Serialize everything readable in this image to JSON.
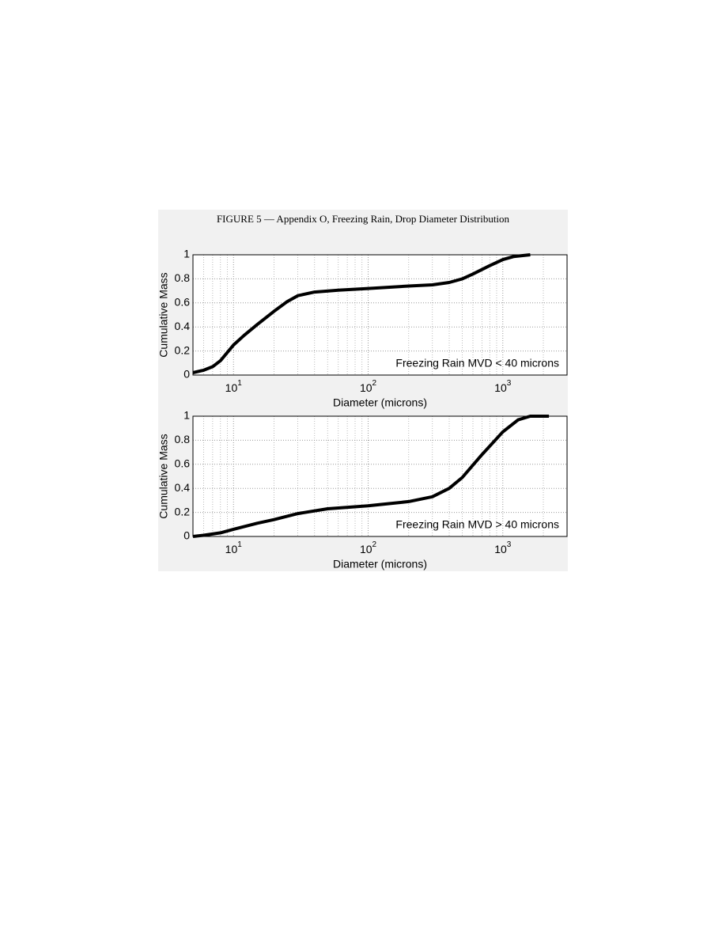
{
  "title": "FIGURE 5 — Appendix O, Freezing Rain, Drop Diameter Distribution",
  "chart_data": [
    {
      "type": "line",
      "xlabel": "Diameter (microns)",
      "ylabel": "Cumulative Mass",
      "annotation": "Freezing Rain MVD < 40 microns",
      "xlog": true,
      "grid": true,
      "minor_grid": true,
      "color": "#000000",
      "xlim": [
        5,
        3000
      ],
      "ylim": [
        0,
        1
      ],
      "xticks": [
        {
          "value": 10,
          "label": "10^1"
        },
        {
          "value": 100,
          "label": "10^2"
        },
        {
          "value": 1000,
          "label": "10^3"
        }
      ],
      "yticks": [
        0,
        0.2,
        0.4,
        0.6,
        0.8,
        1
      ],
      "x": [
        5,
        6,
        7,
        8,
        10,
        12,
        15,
        20,
        25,
        30,
        40,
        60,
        100,
        200,
        300,
        400,
        500,
        600,
        800,
        1000,
        1200,
        1600
      ],
      "values": [
        0.02,
        0.04,
        0.07,
        0.12,
        0.25,
        0.33,
        0.42,
        0.53,
        0.61,
        0.66,
        0.69,
        0.705,
        0.72,
        0.74,
        0.75,
        0.77,
        0.8,
        0.84,
        0.91,
        0.96,
        0.985,
        1
      ]
    },
    {
      "type": "line",
      "xlabel": "Diameter (microns)",
      "ylabel": "Cumulative Mass",
      "annotation": "Freezing Rain MVD > 40 microns",
      "xlog": true,
      "grid": true,
      "minor_grid": true,
      "color": "#000000",
      "xlim": [
        5,
        3000
      ],
      "ylim": [
        0,
        1
      ],
      "xticks": [
        {
          "value": 10,
          "label": "10^1"
        },
        {
          "value": 100,
          "label": "10^2"
        },
        {
          "value": 1000,
          "label": "10^3"
        }
      ],
      "yticks": [
        0,
        0.2,
        0.4,
        0.6,
        0.8,
        1
      ],
      "x": [
        5,
        6,
        8,
        10,
        15,
        20,
        30,
        50,
        100,
        200,
        300,
        400,
        500,
        700,
        1000,
        1300,
        1600,
        2200
      ],
      "values": [
        0,
        0.01,
        0.03,
        0.06,
        0.11,
        0.14,
        0.19,
        0.23,
        0.255,
        0.29,
        0.33,
        0.4,
        0.49,
        0.68,
        0.87,
        0.97,
        1,
        1
      ]
    }
  ]
}
